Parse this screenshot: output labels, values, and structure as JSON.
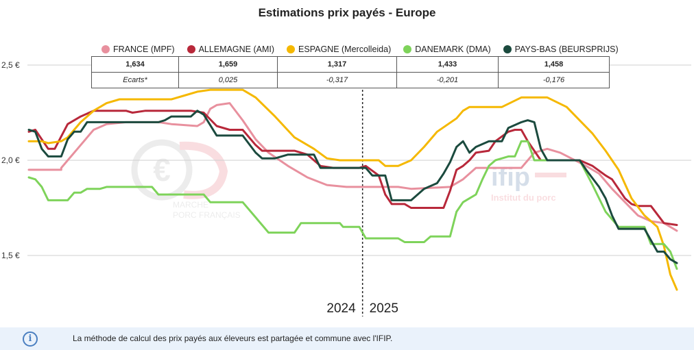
{
  "title": "Estimations prix payés - Europe",
  "legend": [
    {
      "name": "FRANCE (MPF)",
      "color": "#e8909e"
    },
    {
      "name": "ALLEMAGNE (AMI)",
      "color": "#b8283a"
    },
    {
      "name": "ESPAGNE (Mercolleida)",
      "color": "#f5b800"
    },
    {
      "name": "DANEMARK (DMA)",
      "color": "#7ed35a"
    },
    {
      "name": "PAYS-BAS (BEURSPRIJS)",
      "color": "#1b4a3e"
    }
  ],
  "table": {
    "values": [
      "1,634",
      "1,659",
      "1,317",
      "1,433",
      "1,458"
    ],
    "ecarts_label": "Ecarts*",
    "ecarts": [
      "0,025",
      "-0,317",
      "-0,201",
      "-0,176"
    ]
  },
  "info": {
    "icon": "info-icon",
    "text": "La méthode de calcul des prix payés aux éleveurs est partagée et commune avec l'IFIP."
  },
  "watermarks": {
    "left_line1": "MARCHE",
    "left_line2": "PORC FRANÇAIS",
    "right_logo": "ifip",
    "right_text": "Institut du porc"
  },
  "chart_data": {
    "type": "line",
    "title": "Estimations prix payés - Europe",
    "ylim": [
      1.25,
      2.65
    ],
    "yticks": [
      {
        "v": 2.5,
        "label": "2,5 €"
      },
      {
        "v": 2.0,
        "label": "2,0 €"
      },
      {
        "v": 1.5,
        "label": "1,5 €"
      }
    ],
    "grid": true,
    "x_range": [
      0,
      100
    ],
    "year_divider": 51.5,
    "years": [
      "2024",
      "2025"
    ],
    "series": [
      {
        "name": "FRANCE (MPF)",
        "color": "#e8909e",
        "points": [
          [
            0,
            1.95
          ],
          [
            5,
            1.95
          ],
          [
            5,
            1.96
          ],
          [
            8,
            2.08
          ],
          [
            10,
            2.16
          ],
          [
            12,
            2.19
          ],
          [
            15,
            2.2
          ],
          [
            20,
            2.2
          ],
          [
            22,
            2.19
          ],
          [
            26,
            2.18
          ],
          [
            27,
            2.2
          ],
          [
            28,
            2.27
          ],
          [
            29,
            2.29
          ],
          [
            31,
            2.3
          ],
          [
            33,
            2.21
          ],
          [
            35,
            2.11
          ],
          [
            37,
            2.04
          ],
          [
            40,
            1.97
          ],
          [
            43,
            1.91
          ],
          [
            46,
            1.87
          ],
          [
            49,
            1.86
          ],
          [
            57,
            1.86
          ],
          [
            59,
            1.85
          ],
          [
            65,
            1.86
          ],
          [
            67,
            1.9
          ],
          [
            69,
            1.96
          ],
          [
            76,
            1.96
          ],
          [
            78,
            2.04
          ],
          [
            80,
            2.06
          ],
          [
            82,
            2.04
          ],
          [
            86,
            1.97
          ],
          [
            88,
            1.93
          ],
          [
            90,
            1.85
          ],
          [
            92,
            1.78
          ],
          [
            94,
            1.71
          ],
          [
            96,
            1.68
          ],
          [
            98,
            1.67
          ],
          [
            100,
            1.63
          ]
        ]
      },
      {
        "name": "ALLEMAGNE (AMI)",
        "color": "#b8283a",
        "points": [
          [
            0,
            2.15
          ],
          [
            1,
            2.16
          ],
          [
            3,
            2.06
          ],
          [
            4,
            2.06
          ],
          [
            6,
            2.19
          ],
          [
            8,
            2.23
          ],
          [
            10,
            2.26
          ],
          [
            15,
            2.26
          ],
          [
            16,
            2.25
          ],
          [
            18,
            2.26
          ],
          [
            25,
            2.26
          ],
          [
            27,
            2.25
          ],
          [
            29,
            2.18
          ],
          [
            31,
            2.16
          ],
          [
            33,
            2.16
          ],
          [
            35,
            2.08
          ],
          [
            36,
            2.05
          ],
          [
            41,
            2.05
          ],
          [
            43,
            2.03
          ],
          [
            45,
            1.97
          ],
          [
            47,
            1.96
          ],
          [
            51,
            1.96
          ],
          [
            52,
            1.97
          ],
          [
            54,
            1.92
          ],
          [
            55,
            1.82
          ],
          [
            56,
            1.77
          ],
          [
            58,
            1.77
          ],
          [
            59,
            1.75
          ],
          [
            64,
            1.75
          ],
          [
            65,
            1.84
          ],
          [
            66,
            1.95
          ],
          [
            67,
            1.97
          ],
          [
            68,
            2.0
          ],
          [
            69,
            2.04
          ],
          [
            71,
            2.05
          ],
          [
            72,
            2.1
          ],
          [
            74,
            2.15
          ],
          [
            75,
            2.16
          ],
          [
            76,
            2.16
          ],
          [
            77,
            2.1
          ],
          [
            78,
            2.05
          ],
          [
            79,
            2.0
          ],
          [
            85,
            2.0
          ],
          [
            87,
            1.97
          ],
          [
            89,
            1.92
          ],
          [
            90,
            1.9
          ],
          [
            92,
            1.8
          ],
          [
            93,
            1.77
          ],
          [
            94,
            1.76
          ],
          [
            96,
            1.76
          ],
          [
            98,
            1.67
          ],
          [
            100,
            1.66
          ]
        ]
      },
      {
        "name": "ESPAGNE (Mercolleida)",
        "color": "#f5b800",
        "points": [
          [
            0,
            2.1
          ],
          [
            2,
            2.1
          ],
          [
            3,
            2.09
          ],
          [
            5,
            2.1
          ],
          [
            6,
            2.12
          ],
          [
            8,
            2.2
          ],
          [
            10,
            2.26
          ],
          [
            12,
            2.3
          ],
          [
            14,
            2.32
          ],
          [
            22,
            2.32
          ],
          [
            24,
            2.34
          ],
          [
            26,
            2.36
          ],
          [
            28,
            2.37
          ],
          [
            33,
            2.37
          ],
          [
            35,
            2.33
          ],
          [
            38,
            2.23
          ],
          [
            41,
            2.12
          ],
          [
            44,
            2.06
          ],
          [
            46,
            2.01
          ],
          [
            48,
            2.0
          ],
          [
            54,
            2.0
          ],
          [
            55,
            1.97
          ],
          [
            57,
            1.97
          ],
          [
            59,
            2.0
          ],
          [
            61,
            2.07
          ],
          [
            63,
            2.15
          ],
          [
            66,
            2.22
          ],
          [
            67,
            2.26
          ],
          [
            68,
            2.28
          ],
          [
            73,
            2.28
          ],
          [
            76,
            2.33
          ],
          [
            80,
            2.33
          ],
          [
            83,
            2.28
          ],
          [
            87,
            2.14
          ],
          [
            89,
            2.05
          ],
          [
            91,
            1.95
          ],
          [
            93,
            1.8
          ],
          [
            95,
            1.71
          ],
          [
            97,
            1.65
          ],
          [
            98,
            1.55
          ],
          [
            99,
            1.4
          ],
          [
            100,
            1.32
          ]
        ]
      },
      {
        "name": "DANEMARK (DMA)",
        "color": "#7ed35a",
        "points": [
          [
            0,
            1.91
          ],
          [
            1,
            1.9
          ],
          [
            2,
            1.86
          ],
          [
            3,
            1.79
          ],
          [
            6,
            1.79
          ],
          [
            7,
            1.83
          ],
          [
            8,
            1.83
          ],
          [
            9,
            1.85
          ],
          [
            11,
            1.85
          ],
          [
            12,
            1.86
          ],
          [
            19,
            1.86
          ],
          [
            20,
            1.82
          ],
          [
            27,
            1.82
          ],
          [
            28,
            1.78
          ],
          [
            33,
            1.78
          ],
          [
            35,
            1.7
          ],
          [
            37,
            1.62
          ],
          [
            41,
            1.62
          ],
          [
            42,
            1.67
          ],
          [
            48,
            1.67
          ],
          [
            48.5,
            1.65
          ],
          [
            51,
            1.65
          ],
          [
            52,
            1.59
          ],
          [
            57,
            1.59
          ],
          [
            58,
            1.57
          ],
          [
            61,
            1.57
          ],
          [
            62,
            1.6
          ],
          [
            65,
            1.6
          ],
          [
            66,
            1.73
          ],
          [
            67,
            1.78
          ],
          [
            68,
            1.8
          ],
          [
            69,
            1.82
          ],
          [
            70,
            1.9
          ],
          [
            71,
            1.97
          ],
          [
            72,
            2.0
          ],
          [
            73,
            2.01
          ],
          [
            74,
            2.02
          ],
          [
            75,
            2.02
          ],
          [
            76,
            2.1
          ],
          [
            77,
            2.1
          ],
          [
            78,
            2.0
          ],
          [
            85,
            2.0
          ],
          [
            87,
            1.87
          ],
          [
            89,
            1.73
          ],
          [
            91,
            1.65
          ],
          [
            95,
            1.65
          ],
          [
            96,
            1.56
          ],
          [
            98,
            1.56
          ],
          [
            99,
            1.52
          ],
          [
            100,
            1.43
          ]
        ]
      },
      {
        "name": "PAYS-BAS (BEURSPRIJS)",
        "color": "#1b4a3e",
        "points": [
          [
            0,
            2.16
          ],
          [
            1,
            2.15
          ],
          [
            2,
            2.06
          ],
          [
            3,
            2.02
          ],
          [
            5,
            2.02
          ],
          [
            6,
            2.11
          ],
          [
            7,
            2.15
          ],
          [
            8,
            2.15
          ],
          [
            9,
            2.2
          ],
          [
            12,
            2.2
          ],
          [
            15,
            2.2
          ],
          [
            20,
            2.2
          ],
          [
            21,
            2.21
          ],
          [
            22,
            2.23
          ],
          [
            25,
            2.23
          ],
          [
            26,
            2.26
          ],
          [
            27,
            2.24
          ],
          [
            29,
            2.13
          ],
          [
            33,
            2.13
          ],
          [
            35,
            2.04
          ],
          [
            36,
            2.01
          ],
          [
            38,
            2.01
          ],
          [
            39,
            2.02
          ],
          [
            40,
            2.03
          ],
          [
            44,
            2.03
          ],
          [
            45,
            1.96
          ],
          [
            52,
            1.96
          ],
          [
            53,
            1.92
          ],
          [
            55,
            1.92
          ],
          [
            56,
            1.79
          ],
          [
            59,
            1.79
          ],
          [
            61,
            1.85
          ],
          [
            63,
            1.88
          ],
          [
            64,
            1.93
          ],
          [
            65,
            1.99
          ],
          [
            66,
            2.07
          ],
          [
            67,
            2.1
          ],
          [
            68,
            2.04
          ],
          [
            69,
            2.07
          ],
          [
            71,
            2.1
          ],
          [
            73,
            2.1
          ],
          [
            74,
            2.17
          ],
          [
            76,
            2.2
          ],
          [
            77,
            2.21
          ],
          [
            78,
            2.2
          ],
          [
            79,
            2.06
          ],
          [
            80,
            2.0
          ],
          [
            85,
            2.0
          ],
          [
            86,
            1.95
          ],
          [
            88,
            1.86
          ],
          [
            89,
            1.8
          ],
          [
            90,
            1.71
          ],
          [
            91,
            1.64
          ],
          [
            95,
            1.64
          ],
          [
            97,
            1.52
          ],
          [
            98,
            1.52
          ],
          [
            99,
            1.48
          ],
          [
            100,
            1.46
          ]
        ]
      }
    ]
  }
}
